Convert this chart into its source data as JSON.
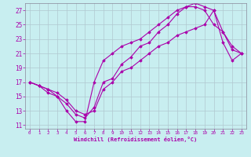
{
  "xlabel": "Windchill (Refroidissement éolien,°C)",
  "bg_color": "#c8eef0",
  "grid_color": "#b0c8d0",
  "line_color": "#aa00aa",
  "xlim": [
    -0.5,
    23.5
  ],
  "ylim": [
    10.5,
    28.0
  ],
  "xticks": [
    0,
    1,
    2,
    3,
    4,
    5,
    6,
    7,
    8,
    9,
    10,
    11,
    12,
    13,
    14,
    15,
    16,
    17,
    18,
    19,
    20,
    21,
    22,
    23
  ],
  "yticks": [
    11,
    13,
    15,
    17,
    19,
    21,
    23,
    25,
    27
  ],
  "line1_x": [
    0,
    1,
    2,
    3,
    4,
    5,
    6,
    7,
    8,
    9,
    10,
    11,
    12,
    13,
    14,
    15,
    16,
    17,
    18,
    19,
    20,
    21,
    22,
    23
  ],
  "line1_y": [
    17,
    16.5,
    16,
    15,
    13,
    11.5,
    11.5,
    17,
    20,
    21,
    22,
    22.5,
    23,
    24,
    25,
    26,
    27,
    27.5,
    27.5,
    27,
    25,
    24,
    22,
    21
  ],
  "line2_x": [
    0,
    1,
    2,
    3,
    4,
    5,
    6,
    7,
    8,
    9,
    10,
    11,
    12,
    13,
    14,
    15,
    16,
    17,
    18,
    19,
    20,
    21,
    22,
    23
  ],
  "line2_y": [
    17,
    16.5,
    15.5,
    15,
    14,
    12.5,
    12,
    13.5,
    17,
    17.5,
    19.5,
    20.5,
    22,
    22.5,
    24,
    25,
    26.5,
    27.5,
    28,
    27.5,
    27,
    22.5,
    20,
    21
  ],
  "line3_x": [
    0,
    1,
    2,
    3,
    4,
    5,
    6,
    7,
    8,
    9,
    10,
    11,
    12,
    13,
    14,
    15,
    16,
    17,
    18,
    19,
    20,
    21,
    22,
    23
  ],
  "line3_y": [
    17,
    16.5,
    16,
    15.5,
    14.5,
    13,
    12.5,
    13,
    16,
    17,
    18.5,
    19,
    20,
    21,
    22,
    22.5,
    23.5,
    24,
    24.5,
    25,
    27,
    24,
    21.5,
    21
  ]
}
